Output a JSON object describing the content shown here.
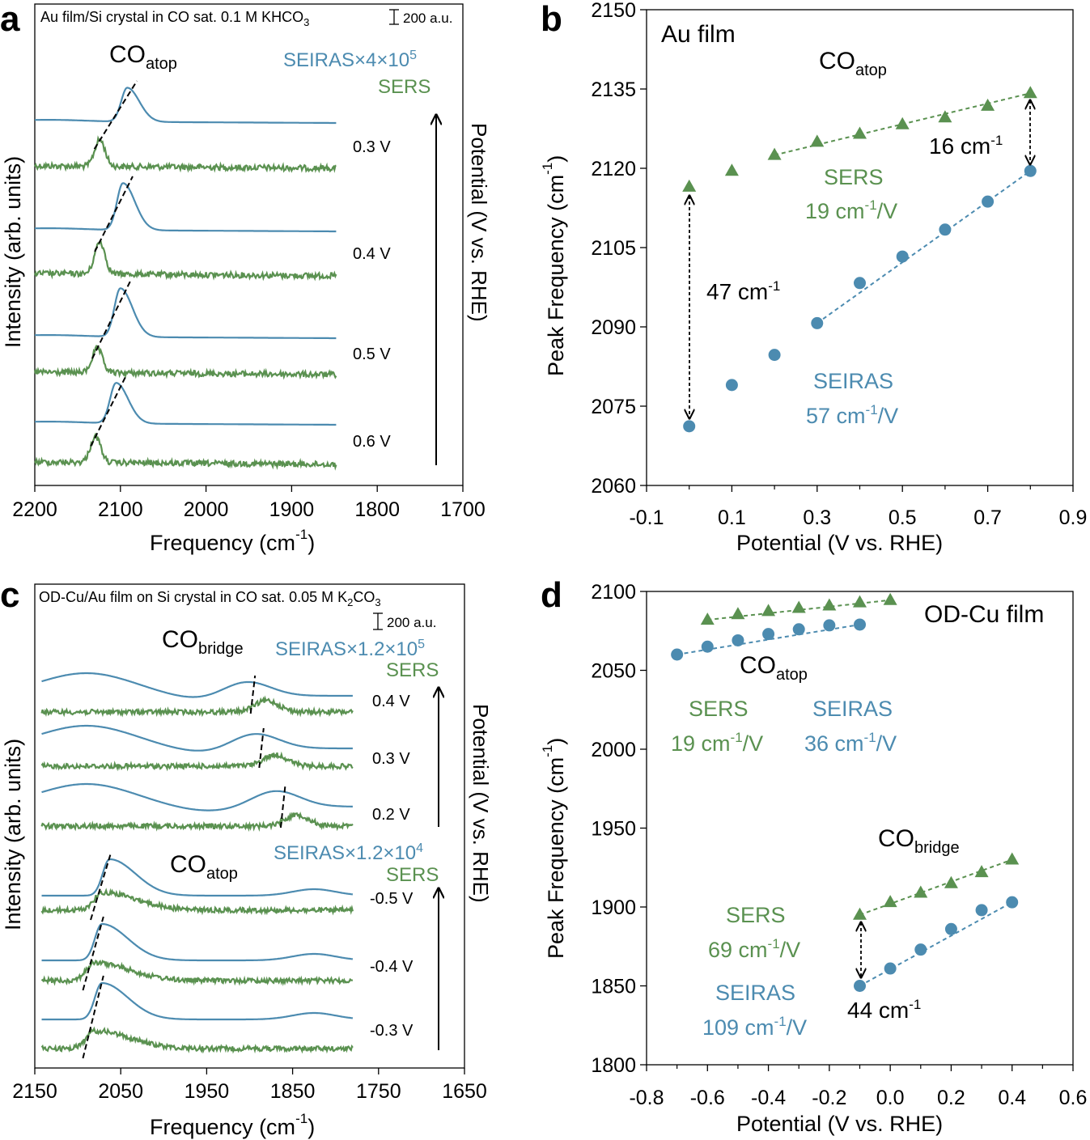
{
  "colors": {
    "sers": "#5a9150",
    "seiras": "#4c8bb0",
    "black": "#000000"
  },
  "chart_data": [
    {
      "panel": "a",
      "type": "line",
      "title": "Au film/Si crystal in CO sat. 0.1 M KHCO",
      "title_sub": "3",
      "scale_bar": "200 a.u.",
      "xlabel": "Frequency (cm",
      "xlabel_sup": "-1",
      "xlabel_end": ")",
      "ylabel": "Intensity (arb. units)",
      "right_label": "Potential (V vs. RHE)",
      "xlim": [
        2200,
        1700
      ],
      "xticks": [
        "2200",
        "2100",
        "2000",
        "1900",
        "1800",
        "1700"
      ],
      "band": {
        "main": "CO",
        "sub": "atop"
      },
      "legend": {
        "seiras_text": "SEIRAS×4×10",
        "seiras_sup": "5",
        "sers": "SERS"
      },
      "potentials": [
        "0.3 V",
        "0.4 V",
        "0.5 V",
        "0.6 V"
      ],
      "peaks": {
        "seiras": [
          2092,
          2097,
          2100,
          2105
        ],
        "sers": [
          2124,
          2124,
          2127,
          2129
        ]
      }
    },
    {
      "panel": "b",
      "type": "scatter",
      "annotation": "Au film",
      "band": {
        "main": "CO",
        "sub": "atop"
      },
      "xlabel": "Potential (V vs. RHE)",
      "ylabel": "Peak Frequency (cm",
      "ylabel_sup": "-1",
      "ylabel_end": ")",
      "xlim": [
        -0.1,
        0.9
      ],
      "ylim": [
        2060,
        2150
      ],
      "xticks": [
        "-0.1",
        "0.1",
        "0.3",
        "0.5",
        "0.7",
        "0.9"
      ],
      "yticks": [
        "2060",
        "2075",
        "2090",
        "2105",
        "2120",
        "2135",
        "2150"
      ],
      "series": [
        {
          "name": "SERS",
          "slope": "19 cm",
          "slope_sup": "-1",
          "slope_end": "/V",
          "x": [
            0,
            0.1,
            0.2,
            0.3,
            0.4,
            0.5,
            0.6,
            0.7,
            0.8
          ],
          "y": [
            2116.5,
            2119.5,
            2122.5,
            2125,
            2126.5,
            2128.3,
            2129.6,
            2131.8,
            2134.2
          ]
        },
        {
          "name": "SEIRAS",
          "slope": "57 cm",
          "slope_sup": "-1",
          "slope_end": "/V",
          "x": [
            0,
            0.1,
            0.2,
            0.3,
            0.4,
            0.5,
            0.6,
            0.7,
            0.8
          ],
          "y": [
            2071.2,
            2079,
            2084.7,
            2090.7,
            2098.3,
            2103.3,
            2108.4,
            2113.7,
            2119.5
          ]
        }
      ],
      "gap_labels": [
        {
          "text": "16 cm",
          "sup": "-1"
        },
        {
          "text": "47 cm",
          "sup": "-1"
        }
      ]
    },
    {
      "panel": "c",
      "type": "line",
      "title": "OD-Cu/Au film on Si crystal in CO sat. 0.05 M K",
      "title_sub": "2",
      "title_end": "CO",
      "title_sub2": "3",
      "scale_bar": "200 a.u.",
      "xlabel": "Frequency (cm",
      "xlabel_sup": "-1",
      "xlabel_end": ")",
      "ylabel": "Intensity (arb. units)",
      "right_label": "Potential (V vs. RHE)",
      "xlim": [
        2150,
        1650
      ],
      "xticks": [
        "2150",
        "2050",
        "1950",
        "1850",
        "1750",
        "1650"
      ],
      "bridge": {
        "main": "CO",
        "sub": "bridge",
        "seiras_text": "SEIRAS×1.2×10",
        "seiras_sup": "5",
        "sers": "SERS",
        "potentials": [
          "0.4 V",
          "0.3 V",
          "0.2 V"
        ]
      },
      "atop": {
        "main": "CO",
        "sub": "atop",
        "seiras_text": "SEIRAS×1.2×10",
        "seiras_sup": "4",
        "sers": "SERS",
        "potentials": [
          "-0.5 V",
          "-0.4 V",
          "-0.3 V"
        ]
      }
    },
    {
      "panel": "d",
      "type": "scatter",
      "annotation": "OD-Cu film",
      "xlabel": "Potential (V vs. RHE)",
      "ylabel": "Peak Frequency (cm",
      "ylabel_sup": "-1",
      "ylabel_end": ")",
      "xlim": [
        -0.8,
        0.6
      ],
      "ylim": [
        1800,
        2100
      ],
      "xticks": [
        "-0.8",
        "-0.6",
        "-0.4",
        "-0.2",
        "0.0",
        "0.2",
        "0.4",
        "0.6"
      ],
      "yticks": [
        "1800",
        "1850",
        "1900",
        "1950",
        "2000",
        "2050",
        "2100"
      ],
      "atop": {
        "label": {
          "main": "CO",
          "sub": "atop"
        },
        "series": [
          {
            "name": "SERS",
            "slope": "19 cm",
            "slope_sup": "-1",
            "slope_end": "/V",
            "x": [
              -0.6,
              -0.5,
              -0.4,
              -0.3,
              -0.2,
              -0.1,
              0.0
            ],
            "y": [
              2082,
              2085.5,
              2087.5,
              2089.5,
              2091,
              2093,
              2094.5
            ]
          },
          {
            "name": "SEIRAS",
            "slope": "36 cm",
            "slope_sup": "-1",
            "slope_end": "/V",
            "x": [
              -0.7,
              -0.6,
              -0.5,
              -0.4,
              -0.3,
              -0.2,
              -0.1
            ],
            "y": [
              2060,
              2065,
              2069,
              2073,
              2076,
              2078.5,
              2079
            ]
          }
        ]
      },
      "bridge": {
        "label": {
          "main": "CO",
          "sub": "bridge"
        },
        "series": [
          {
            "name": "SERS",
            "slope": "69 cm",
            "slope_sup": "-1",
            "slope_end": "/V",
            "x": [
              -0.1,
              0.0,
              0.1,
              0.2,
              0.3,
              0.4
            ],
            "y": [
              1895,
              1903,
              1909,
              1915,
              1922,
              1930
            ]
          },
          {
            "name": "SEIRAS",
            "slope": "109 cm",
            "slope_sup": "-1",
            "slope_end": "/V",
            "x": [
              -0.1,
              0.0,
              0.1,
              0.2,
              0.3,
              0.4
            ],
            "y": [
              1850,
              1861,
              1873,
              1886,
              1898,
              1903
            ]
          }
        ]
      },
      "gap_label": {
        "text": "44 cm",
        "sup": "-1"
      }
    }
  ],
  "panel_letters": [
    "a",
    "b",
    "c",
    "d"
  ]
}
